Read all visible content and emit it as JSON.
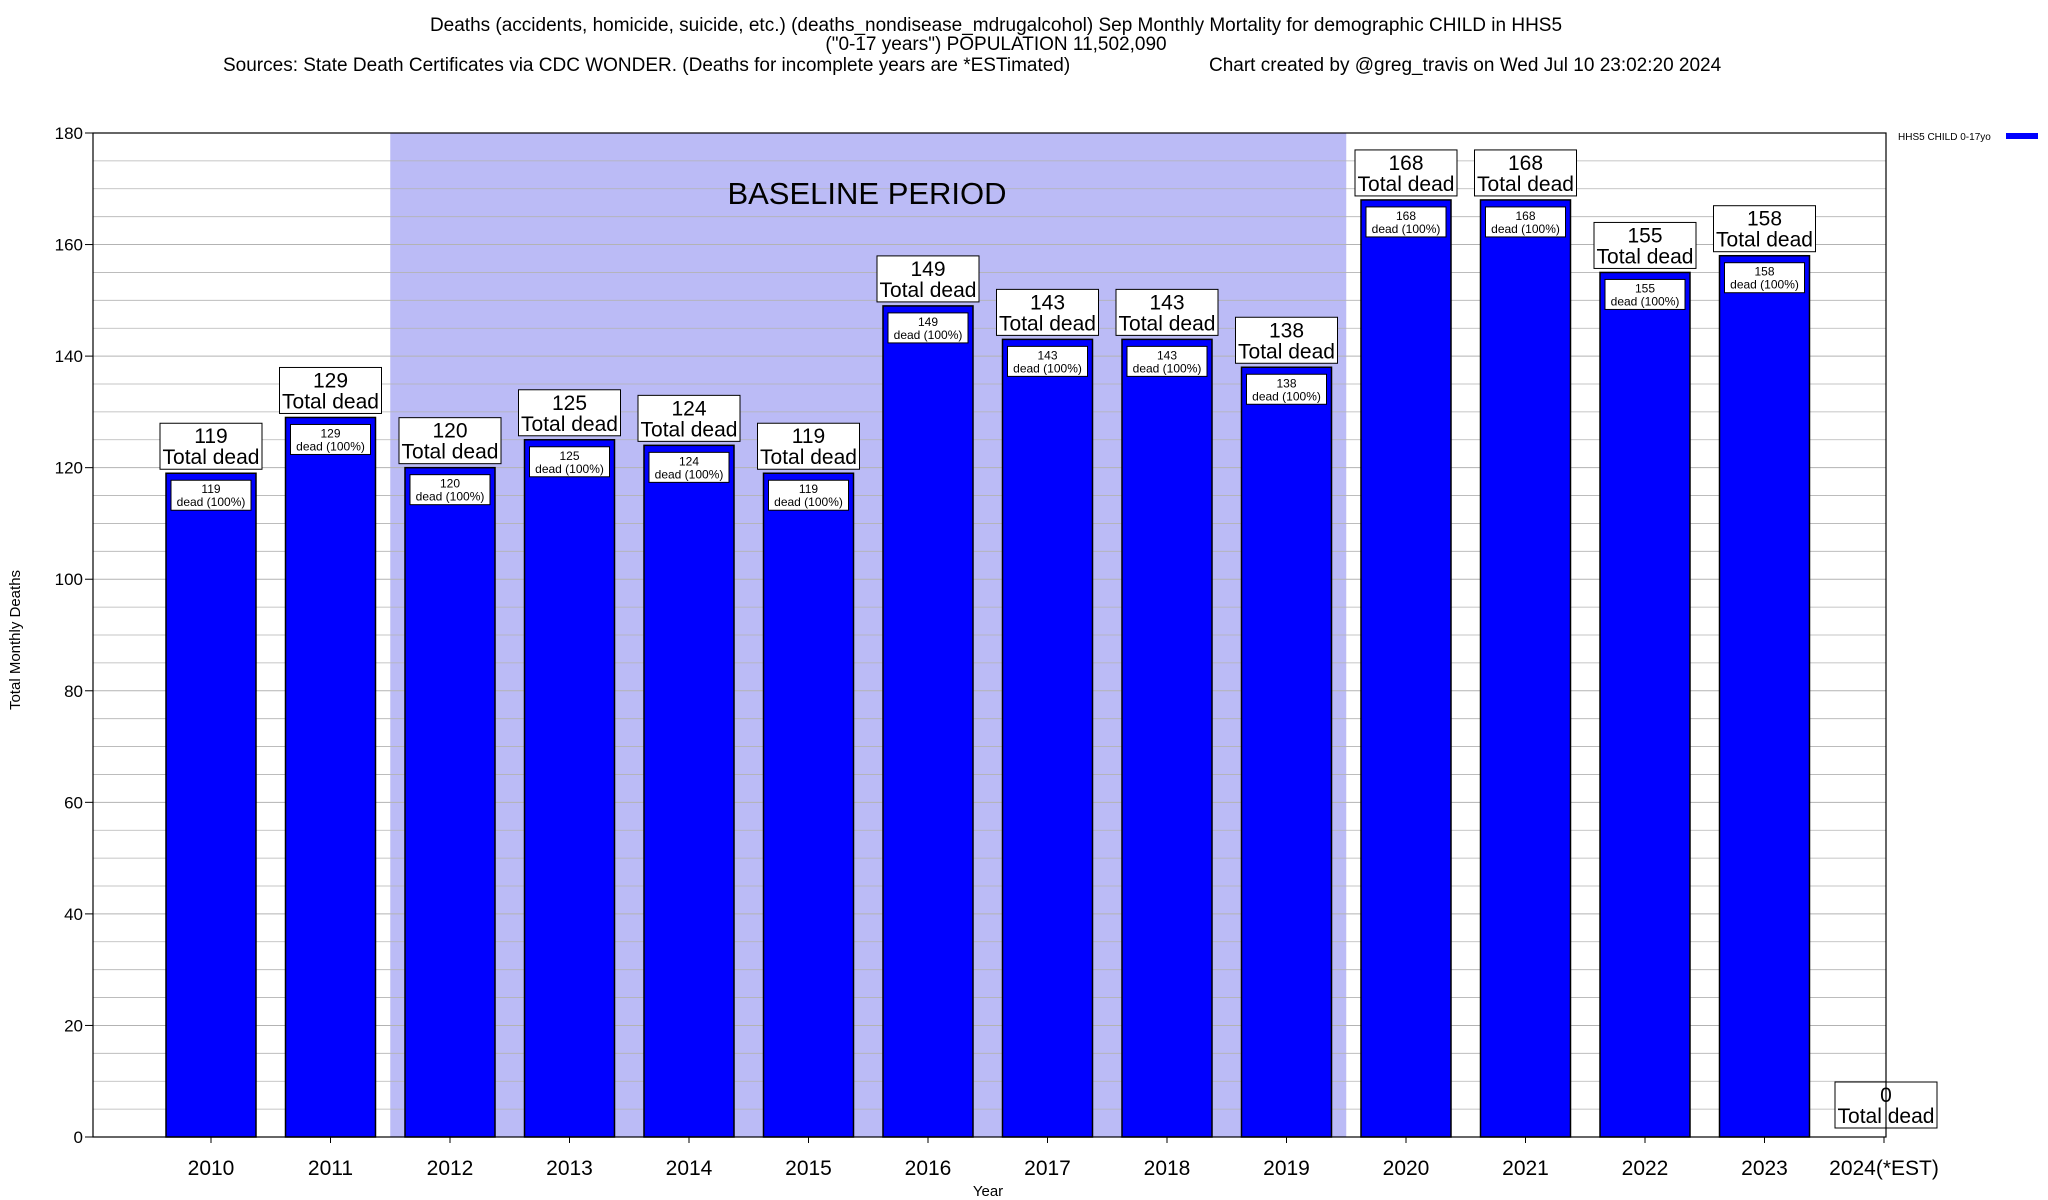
{
  "title": {
    "line1": "Deaths (accidents, homicide, suicide, etc.) (deaths_nondisease_mdrugalcohol) Sep Monthly Mortality for demographic CHILD in HHS5",
    "line2": "(\"0-17 years\") POPULATION 11,502,090",
    "line3_sources": "Sources: State Death Certificates via CDC WONDER. (Deaths for incomplete years are *ESTimated)",
    "line3_credit": "Chart created by @greg_travis on Wed Jul 10 23:02:20 2024"
  },
  "annotation": {
    "baseline_label": "BASELINE PERIOD",
    "baseline_range": [
      "2012",
      "2019"
    ],
    "baseline_color": "#bbbbf6"
  },
  "colors": {
    "bar": "#0000ff",
    "bar_border": "#000000",
    "grid": "#b3b3b3"
  },
  "chart_data": {
    "type": "bar",
    "categories": [
      "2010",
      "2011",
      "2012",
      "2013",
      "2014",
      "2015",
      "2016",
      "2017",
      "2018",
      "2019",
      "2020",
      "2021",
      "2022",
      "2023",
      "2024(*EST)"
    ],
    "series": [
      {
        "name": "HHS5 CHILD 0-17yo",
        "values": [
          119,
          129,
          120,
          125,
          124,
          119,
          149,
          143,
          143,
          138,
          168,
          168,
          155,
          158,
          0
        ]
      }
    ],
    "total_word": "Total dead",
    "inner_label_word": "dead (100%)",
    "xlabel": "Year",
    "ylabel": "Total Monthly Deaths",
    "ylim": [
      0,
      180
    ],
    "yticks": [
      0,
      20,
      40,
      60,
      80,
      100,
      120,
      140,
      160,
      180
    ],
    "minor_step": 5,
    "grid": true,
    "legend_position": "top-right"
  }
}
